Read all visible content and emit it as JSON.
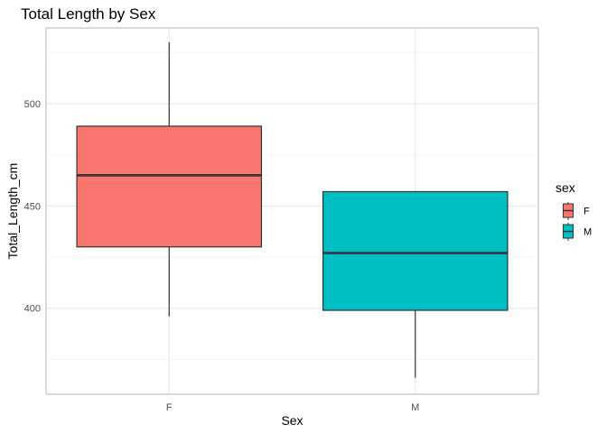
{
  "chart_data": {
    "type": "boxplot",
    "title": "Total Length by Sex",
    "xlabel": "Sex",
    "ylabel": "Total_Length_cm",
    "ylim": [
      358,
      537
    ],
    "yticks": [
      400,
      450,
      500
    ],
    "categories": [
      "F",
      "M"
    ],
    "boxes": [
      {
        "category": "F",
        "min": 396,
        "q1": 430,
        "median": 465,
        "q3": 489,
        "max": 530,
        "color": "#F8766D"
      },
      {
        "category": "M",
        "min": 366,
        "q1": 399,
        "median": 427,
        "q3": 457,
        "max": 457,
        "color": "#00BFC4"
      }
    ],
    "legend": {
      "title": "sex",
      "position": "right",
      "items": [
        {
          "label": "F",
          "color": "#F8766D"
        },
        {
          "label": "M",
          "color": "#00BFC4"
        }
      ]
    },
    "grid": true
  }
}
